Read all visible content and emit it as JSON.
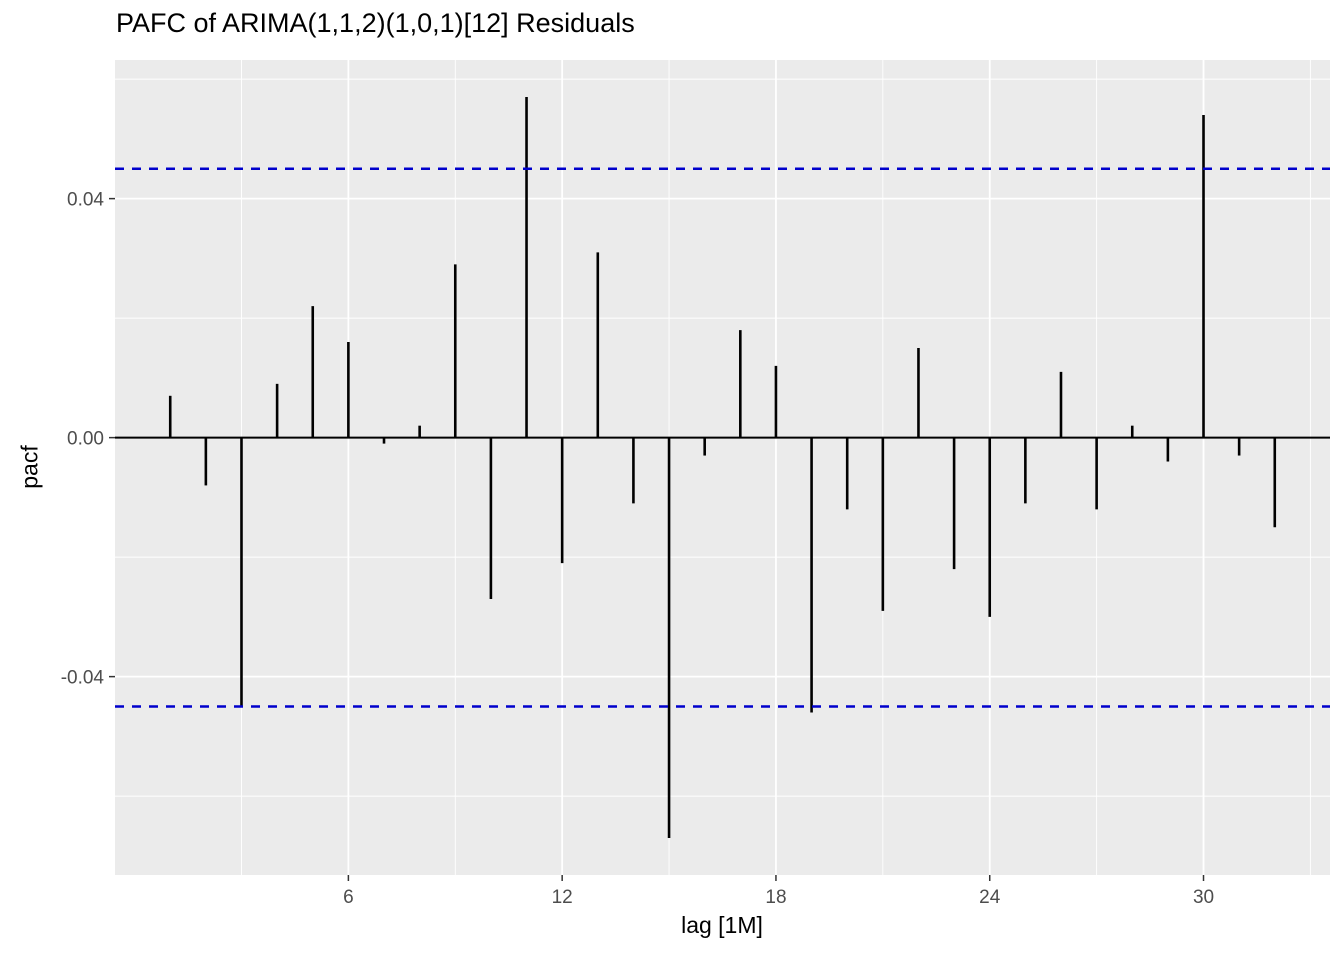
{
  "chart_data": {
    "type": "bar",
    "subtype": "pacf-lollipop",
    "title": "PAFC of ARIMA(1,1,2)(1,0,1)[12] Residuals",
    "xlabel": "lag [1M]",
    "ylabel": "pacf",
    "x": [
      1,
      2,
      3,
      4,
      5,
      6,
      7,
      8,
      9,
      10,
      11,
      12,
      13,
      14,
      15,
      16,
      17,
      18,
      19,
      20,
      21,
      22,
      23,
      24,
      25,
      26,
      27,
      28,
      29,
      30,
      31,
      32
    ],
    "values": [
      0.007,
      -0.008,
      -0.045,
      0.009,
      0.022,
      0.016,
      -0.001,
      0.002,
      0.029,
      -0.027,
      0.057,
      -0.021,
      0.031,
      -0.011,
      -0.067,
      -0.003,
      0.018,
      0.012,
      -0.046,
      -0.012,
      -0.029,
      0.015,
      -0.022,
      -0.03,
      -0.011,
      0.011,
      -0.012,
      0.002,
      -0.004,
      0.054,
      -0.003,
      -0.015
    ],
    "ci_upper": 0.045,
    "ci_lower": -0.045,
    "xlim": [
      -0.55,
      33.55
    ],
    "ylim": [
      -0.0732,
      0.0632
    ],
    "x_ticks": {
      "values": [
        6,
        12,
        18,
        24,
        30
      ],
      "labels": [
        "6",
        "12",
        "18",
        "24",
        "30"
      ]
    },
    "x_minor": [
      3,
      9,
      15,
      21,
      27,
      33
    ],
    "y_ticks": {
      "values": [
        0.04,
        0.0,
        -0.04
      ],
      "labels": [
        "0.04",
        "0.00",
        "-0.04"
      ]
    },
    "y_minor": [
      0.06,
      0.02,
      -0.02,
      -0.06
    ],
    "grid": true,
    "legend_position": "none",
    "colors": {
      "panel": "#EBEBEB",
      "grid_major": "#FFFFFF",
      "grid_minor": "#FFFFFF",
      "bar": "#000000",
      "zero_line": "#000000",
      "ci_line": "#0000CC",
      "tick_mark": "#333333",
      "tick_label": "#4D4D4D"
    }
  }
}
